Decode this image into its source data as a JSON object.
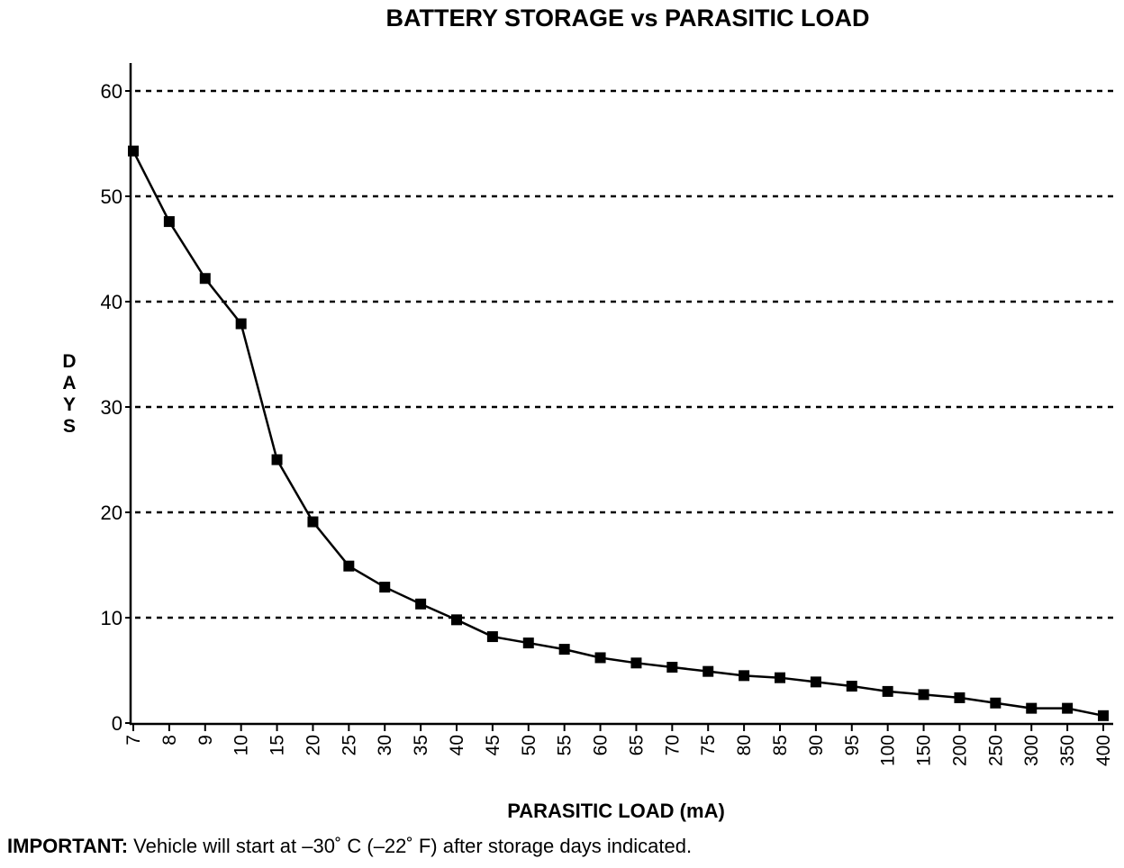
{
  "chart_data": {
    "type": "line",
    "title": "BATTERY STORAGE vs PARASITIC LOAD",
    "xlabel": "PARASITIC LOAD (mA)",
    "ylabel": "DAYS",
    "categories": [
      "7",
      "8",
      "9",
      "10",
      "15",
      "20",
      "25",
      "30",
      "35",
      "40",
      "45",
      "50",
      "55",
      "60",
      "65",
      "70",
      "75",
      "80",
      "85",
      "90",
      "95",
      "100",
      "150",
      "200",
      "250",
      "300",
      "350",
      "400"
    ],
    "series": [
      {
        "name": "Days",
        "values": [
          54.3,
          47.6,
          42.2,
          37.9,
          25.0,
          19.1,
          14.9,
          12.9,
          11.3,
          9.8,
          8.2,
          7.6,
          7.0,
          6.2,
          5.7,
          5.3,
          4.9,
          4.5,
          4.3,
          3.9,
          3.5,
          3.0,
          2.7,
          2.4,
          1.9,
          1.4,
          1.4,
          0.7
        ]
      }
    ],
    "ylim": [
      0,
      60
    ],
    "yticks": [
      0,
      10,
      20,
      30,
      40,
      50,
      60
    ],
    "grid": "horizontal dashed",
    "marker": "square"
  },
  "note": {
    "label": "IMPORTANT:",
    "text": " Vehicle will start at –30˚ C (–22˚ F) after storage days indicated."
  }
}
